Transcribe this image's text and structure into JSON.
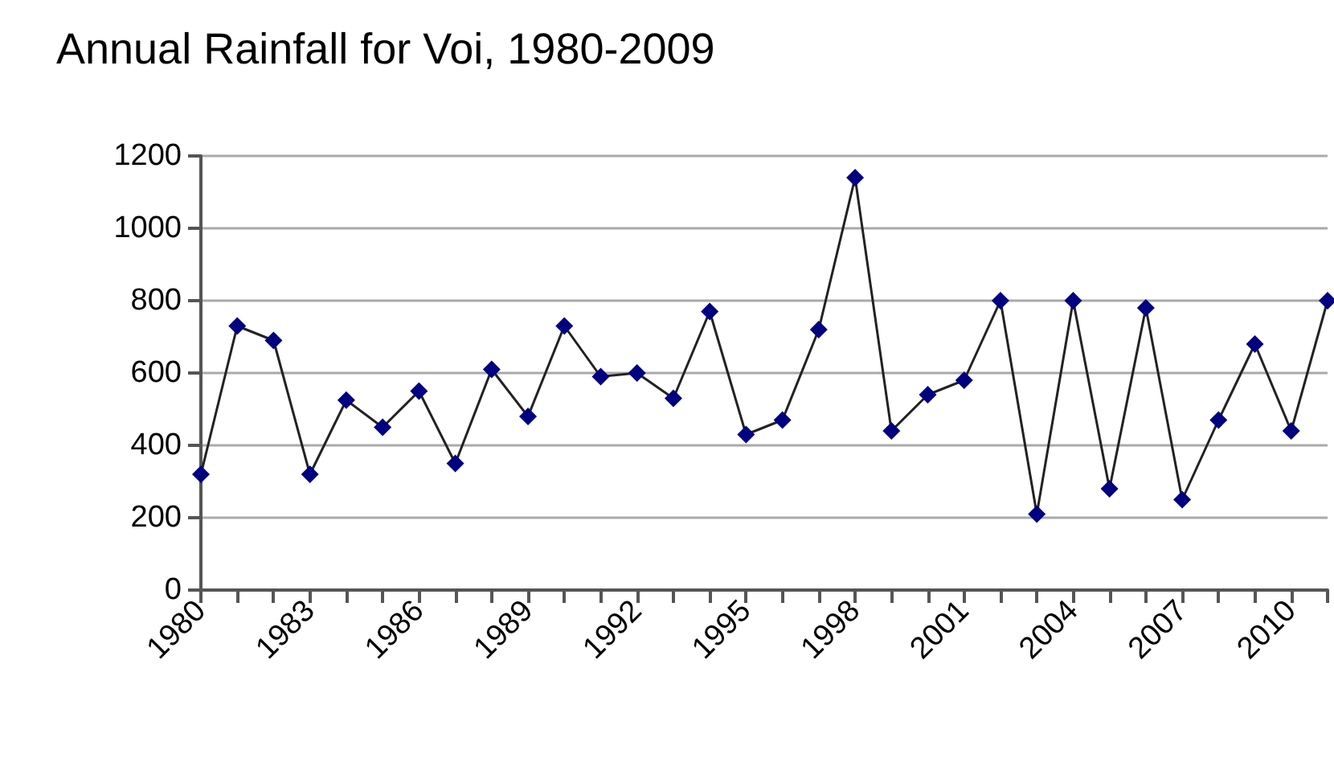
{
  "chart_data": {
    "type": "line",
    "title": "Annual Rainfall for Voi, 1980-2009",
    "categories": [
      "1980",
      null,
      null,
      "1983",
      null,
      null,
      "1986",
      null,
      null,
      "1989",
      null,
      null,
      "1992",
      null,
      null,
      "1995",
      null,
      null,
      "1998",
      null,
      null,
      "2001",
      null,
      null,
      "2004",
      null,
      null,
      "2007",
      null,
      null,
      "2010",
      null
    ],
    "series": [
      {
        "color": "#000080",
        "values": [
          320,
          730,
          690,
          320,
          525,
          450,
          550,
          350,
          610,
          480,
          730,
          590,
          600,
          530,
          770,
          430,
          470,
          720,
          1140,
          440,
          540,
          580,
          800,
          210,
          800,
          280,
          780,
          250,
          470,
          680,
          440,
          800
        ]
      }
    ],
    "ylim": [
      0,
      1200
    ],
    "yticks": [
      0,
      200,
      400,
      600,
      800,
      1000,
      1200
    ],
    "grid": "y",
    "marker": "diamond",
    "line_style": "solid"
  }
}
